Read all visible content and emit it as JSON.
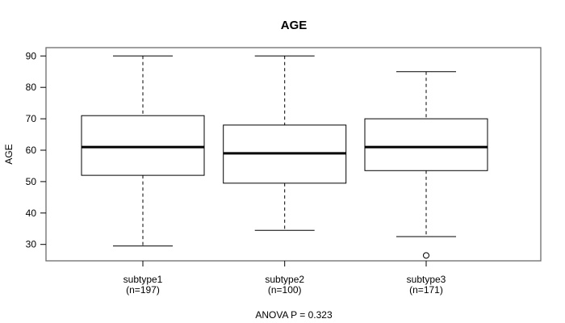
{
  "chart_data": {
    "type": "boxplot",
    "title": "AGE",
    "xlabel": "",
    "ylabel": "AGE",
    "annotation": "ANOVA P = 0.323",
    "ylim": [
      24.8,
      92.6
    ],
    "yticks": [
      30,
      40,
      50,
      60,
      70,
      80,
      90
    ],
    "grid": "off",
    "legend": "none",
    "groups": [
      {
        "label": "subtype1",
        "sublabel": "(n=197)",
        "n": 197,
        "whisker_low": 29.5,
        "q1": 52,
        "median": 61,
        "q3": 71,
        "whisker_high": 90,
        "outliers": []
      },
      {
        "label": "subtype2",
        "sublabel": "(n=100)",
        "n": 100,
        "whisker_low": 34.5,
        "q1": 49.5,
        "median": 59,
        "q3": 68,
        "whisker_high": 90,
        "outliers": []
      },
      {
        "label": "subtype3",
        "sublabel": "(n=171)",
        "n": 171,
        "whisker_low": 32.5,
        "q1": 53.5,
        "median": 61,
        "q3": 70,
        "whisker_high": 85,
        "outliers": [
          26.5
        ]
      }
    ]
  },
  "colors": {
    "stroke": "#000000",
    "frame": "#6b6b6b",
    "box_fill": "#ffffff",
    "background": "#ffffff"
  }
}
